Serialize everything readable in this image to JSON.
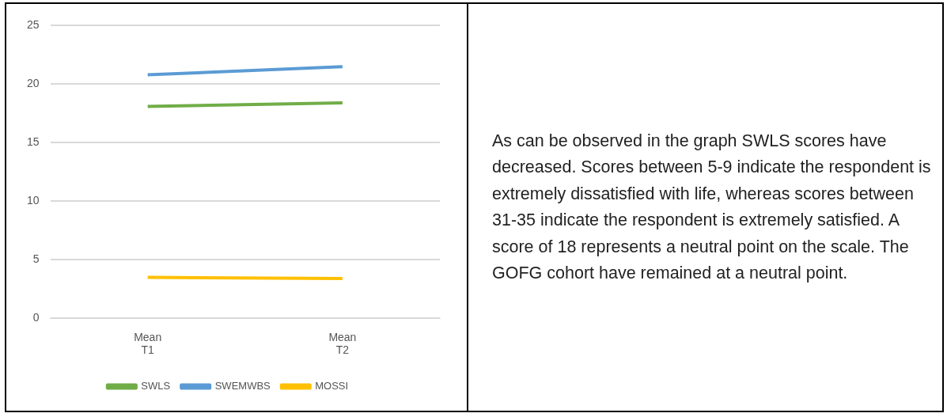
{
  "chart_data": {
    "type": "line",
    "categories": [
      "Mean\nT1",
      "Mean\nT2"
    ],
    "series": [
      {
        "name": "SWLS",
        "color": "#70ad47",
        "values": [
          18.1,
          18.4
        ]
      },
      {
        "name": "SWEMWBS",
        "color": "#5b9bd5",
        "values": [
          20.8,
          21.5
        ]
      },
      {
        "name": "MOSSI",
        "color": "#ffc000",
        "values": [
          3.5,
          3.4
        ]
      }
    ],
    "ylim": [
      0,
      25
    ],
    "yticks": [
      0,
      5,
      10,
      15,
      20,
      25
    ],
    "grid": "y",
    "legend": "bottom",
    "marker": "none",
    "line_style": "solid",
    "annotations": [
      "As can be observed in the graph SWLS scores have decreased. Scores between 5-9 indicate the respondent is extremely dissatisfied with life, whereas scores between 31-35 indicate the respondent is extremely satisfied. A score of 18 represents a neutral point on the scale. The GOFG cohort have remained at a neutral point."
    ]
  }
}
